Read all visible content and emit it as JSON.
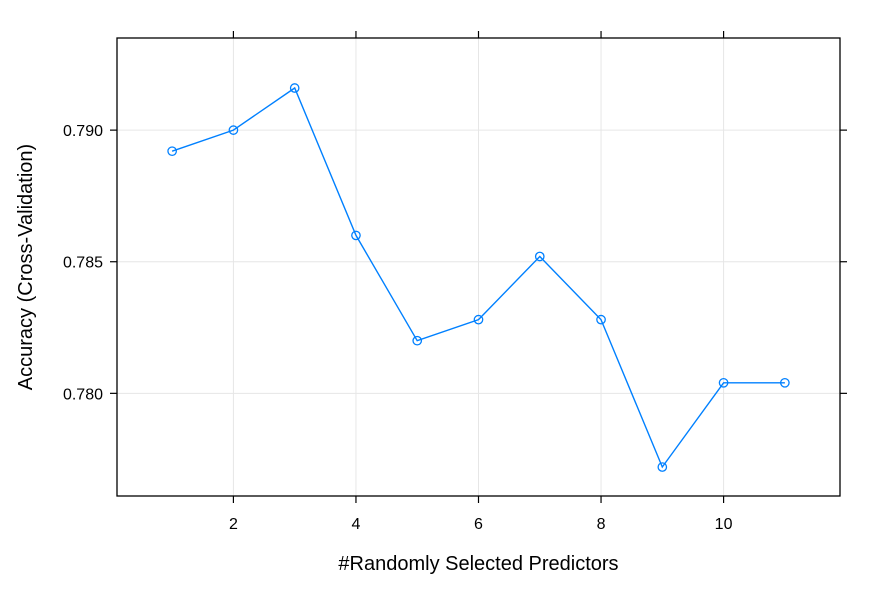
{
  "chart_data": {
    "type": "line",
    "title": "",
    "xlabel": "#Randomly Selected Predictors",
    "ylabel": "Accuracy (Cross-Validation)",
    "x": [
      1,
      2,
      3,
      4,
      5,
      6,
      7,
      8,
      9,
      10,
      11
    ],
    "series": [
      {
        "values": [
          0.7892,
          0.79,
          0.7916,
          0.786,
          0.782,
          0.7828,
          0.7852,
          0.7828,
          0.7772,
          0.7804,
          0.7804
        ]
      }
    ],
    "xlim": [
      0.1,
      11.9
    ],
    "ylim": [
      0.7761,
      0.7935
    ],
    "xticks": [
      2,
      4,
      6,
      8,
      10
    ],
    "xtick_labels": [
      "2",
      "4",
      "6",
      "8",
      "10"
    ],
    "yticks": [
      0.78,
      0.785,
      0.79
    ],
    "ytick_labels": [
      "0.780",
      "0.785",
      "0.790"
    ],
    "grid": true,
    "colors": {
      "line": "#0080ff",
      "grid": "#e6e6e6",
      "frame": "#000000"
    }
  }
}
